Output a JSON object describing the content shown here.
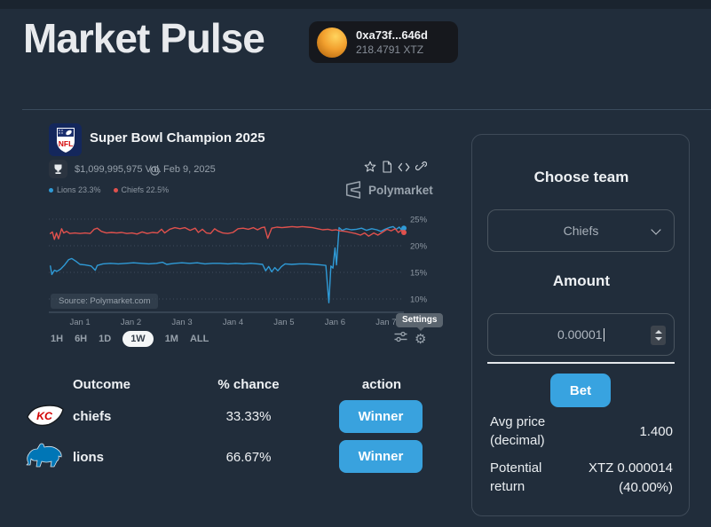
{
  "header": {
    "title": "Market Pulse",
    "wallet": {
      "address": "0xa73f...646d",
      "balance": "218.4791 XTZ"
    }
  },
  "market": {
    "title": "Super Bowl Champion 2025",
    "volume": "$1,099,995,975 Vol.",
    "date": "Feb 9, 2025",
    "legend": [
      {
        "label": "Lions 23.3%",
        "color": "#2f9ad6"
      },
      {
        "label": "Chiefs 22.5%",
        "color": "#e0514d"
      }
    ],
    "brand": "Polymarket",
    "source_note": "Source: Polymarket.com",
    "ranges": [
      "1H",
      "6H",
      "1D",
      "1W",
      "1M",
      "ALL"
    ],
    "selected_range": "1W",
    "settings_tooltip": "Settings"
  },
  "chart_data": {
    "type": "line",
    "title": "",
    "xlabel": "",
    "ylabel": "",
    "x_ticks": [
      "Jan 1",
      "Jan 2",
      "Jan 3",
      "Jan 4",
      "Jan 5",
      "Jan 6",
      "Jan 7"
    ],
    "y_tick_values": [
      25,
      20,
      15,
      10
    ],
    "y_tick_labels": [
      "25%",
      "20%",
      "15%",
      "10%"
    ],
    "xlim": [
      0.39,
      7.35
    ],
    "ylim": [
      7.5,
      26.5
    ],
    "grid": true,
    "legend_position": "top-left",
    "series": [
      {
        "name": "Lions",
        "color": "#2f9ad6",
        "points": [
          [
            0.42,
            16.2
          ],
          [
            0.45,
            14.6
          ],
          [
            0.5,
            15.4
          ],
          [
            0.55,
            15.2
          ],
          [
            0.62,
            15.6
          ],
          [
            0.7,
            16.4
          ],
          [
            0.78,
            17.4
          ],
          [
            0.84,
            17.6
          ],
          [
            0.92,
            17.1
          ],
          [
            1.0,
            16.5
          ],
          [
            1.1,
            16.4
          ],
          [
            1.22,
            16.2
          ],
          [
            1.3,
            15.4
          ],
          [
            1.34,
            16.3
          ],
          [
            1.45,
            16.6
          ],
          [
            1.6,
            16.7
          ],
          [
            1.75,
            16.6
          ],
          [
            1.9,
            16.7
          ],
          [
            2.05,
            16.8
          ],
          [
            2.2,
            16.7
          ],
          [
            2.35,
            16.6
          ],
          [
            2.5,
            16.7
          ],
          [
            2.62,
            16.9
          ],
          [
            2.7,
            16.5
          ],
          [
            2.85,
            16.7
          ],
          [
            3.0,
            16.8
          ],
          [
            3.15,
            16.7
          ],
          [
            3.3,
            16.8
          ],
          [
            3.45,
            16.6
          ],
          [
            3.6,
            16.7
          ],
          [
            3.75,
            16.7
          ],
          [
            3.9,
            16.6
          ],
          [
            4.05,
            16.7
          ],
          [
            4.2,
            16.6
          ],
          [
            4.35,
            16.7
          ],
          [
            4.48,
            16.6
          ],
          [
            4.58,
            16.5
          ],
          [
            4.64,
            15.3
          ],
          [
            4.7,
            16.1
          ],
          [
            4.76,
            15.1
          ],
          [
            4.82,
            15.9
          ],
          [
            4.88,
            15.3
          ],
          [
            4.95,
            16.1
          ],
          [
            5.02,
            16.6
          ],
          [
            5.15,
            16.5
          ],
          [
            5.3,
            16.6
          ],
          [
            5.45,
            16.6
          ],
          [
            5.6,
            16.5
          ],
          [
            5.72,
            16.4
          ],
          [
            5.82,
            16.3
          ],
          [
            5.88,
            9.3
          ],
          [
            5.92,
            16.2
          ],
          [
            5.96,
            15.8
          ],
          [
            6.0,
            19.6
          ],
          [
            6.03,
            16.4
          ],
          [
            6.08,
            23.4
          ],
          [
            6.14,
            22.9
          ],
          [
            6.22,
            23.2
          ],
          [
            6.32,
            23.0
          ],
          [
            6.42,
            23.1
          ],
          [
            6.52,
            23.3
          ],
          [
            6.62,
            22.9
          ],
          [
            6.72,
            23.2
          ],
          [
            6.82,
            23.0
          ],
          [
            6.9,
            22.7
          ],
          [
            6.98,
            23.1
          ],
          [
            7.06,
            23.4
          ],
          [
            7.14,
            23.6
          ],
          [
            7.2,
            23.1
          ],
          [
            7.26,
            23.5
          ],
          [
            7.31,
            22.9
          ],
          [
            7.35,
            23.3
          ]
        ]
      },
      {
        "name": "Chiefs",
        "color": "#e0514d",
        "points": [
          [
            0.42,
            22.3
          ],
          [
            0.46,
            22.6
          ],
          [
            0.5,
            21.2
          ],
          [
            0.54,
            22.4
          ],
          [
            0.58,
            21.3
          ],
          [
            0.64,
            23.2
          ],
          [
            0.68,
            22.4
          ],
          [
            0.74,
            22.7
          ],
          [
            0.8,
            22.3
          ],
          [
            0.9,
            22.4
          ],
          [
            1.0,
            22.3
          ],
          [
            1.1,
            22.4
          ],
          [
            1.2,
            22.3
          ],
          [
            1.28,
            23.1
          ],
          [
            1.34,
            23.3
          ],
          [
            1.42,
            22.7
          ],
          [
            1.52,
            22.4
          ],
          [
            1.62,
            22.5
          ],
          [
            1.72,
            22.4
          ],
          [
            1.82,
            22.5
          ],
          [
            1.92,
            22.3
          ],
          [
            2.02,
            22.4
          ],
          [
            2.12,
            22.2
          ],
          [
            2.22,
            22.6
          ],
          [
            2.32,
            22.3
          ],
          [
            2.42,
            22.5
          ],
          [
            2.52,
            22.4
          ],
          [
            2.6,
            23.1
          ],
          [
            2.66,
            22.4
          ],
          [
            2.76,
            23.1
          ],
          [
            2.86,
            23.4
          ],
          [
            2.96,
            23.2
          ],
          [
            3.06,
            23.4
          ],
          [
            3.16,
            22.9
          ],
          [
            3.26,
            23.3
          ],
          [
            3.32,
            22.5
          ],
          [
            3.4,
            23.1
          ],
          [
            3.48,
            22.4
          ],
          [
            3.56,
            22.3
          ],
          [
            3.64,
            23.2
          ],
          [
            3.7,
            22.8
          ],
          [
            3.8,
            22.4
          ],
          [
            3.9,
            22.3
          ],
          [
            4.0,
            22.5
          ],
          [
            4.1,
            23.2
          ],
          [
            4.2,
            23.3
          ],
          [
            4.3,
            23.1
          ],
          [
            4.4,
            23.4
          ],
          [
            4.48,
            23.0
          ],
          [
            4.56,
            23.4
          ],
          [
            4.62,
            23.5
          ],
          [
            4.68,
            21.4
          ],
          [
            4.76,
            23.3
          ],
          [
            4.86,
            23.5
          ],
          [
            4.96,
            23.4
          ],
          [
            5.06,
            23.5
          ],
          [
            5.16,
            23.6
          ],
          [
            5.26,
            23.5
          ],
          [
            5.36,
            23.6
          ],
          [
            5.46,
            23.5
          ],
          [
            5.56,
            23.4
          ],
          [
            5.66,
            23.2
          ],
          [
            5.76,
            23.0
          ],
          [
            5.86,
            23.1
          ],
          [
            5.94,
            22.9
          ],
          [
            6.02,
            23.0
          ],
          [
            6.1,
            22.8
          ],
          [
            6.2,
            22.7
          ],
          [
            6.3,
            22.5
          ],
          [
            6.4,
            22.3
          ],
          [
            6.5,
            22.0
          ],
          [
            6.58,
            22.4
          ],
          [
            6.66,
            21.8
          ],
          [
            6.76,
            22.4
          ],
          [
            6.84,
            22.0
          ],
          [
            6.94,
            22.6
          ],
          [
            7.02,
            23.1
          ],
          [
            7.1,
            22.8
          ],
          [
            7.18,
            23.2
          ],
          [
            7.24,
            22.5
          ],
          [
            7.3,
            22.9
          ],
          [
            7.35,
            22.5
          ]
        ]
      }
    ]
  },
  "outcomes": {
    "headers": [
      "Outcome",
      "% chance",
      "action"
    ],
    "rows": [
      {
        "team": "chiefs",
        "chance": "33.33%",
        "action": "Winner"
      },
      {
        "team": "lions",
        "chance": "66.67%",
        "action": "Winner"
      }
    ]
  },
  "bet_panel": {
    "choose_team_label": "Choose team",
    "selected_team": "Chiefs",
    "amount_label": "Amount",
    "amount_value": "0.00001",
    "bet_label": "Bet",
    "rows": [
      {
        "label_line1": "Avg price",
        "label_line2": "(decimal)",
        "value_line1": "1.400",
        "value_line2": ""
      },
      {
        "label_line1": "Potential",
        "label_line2": "return",
        "value_line1": "XTZ 0.000014",
        "value_line2": "(40.00%)"
      }
    ]
  },
  "colors": {
    "accent_blue": "#39a2de",
    "lions_blue": "#2f9ad6",
    "chiefs_red": "#e0514d"
  }
}
